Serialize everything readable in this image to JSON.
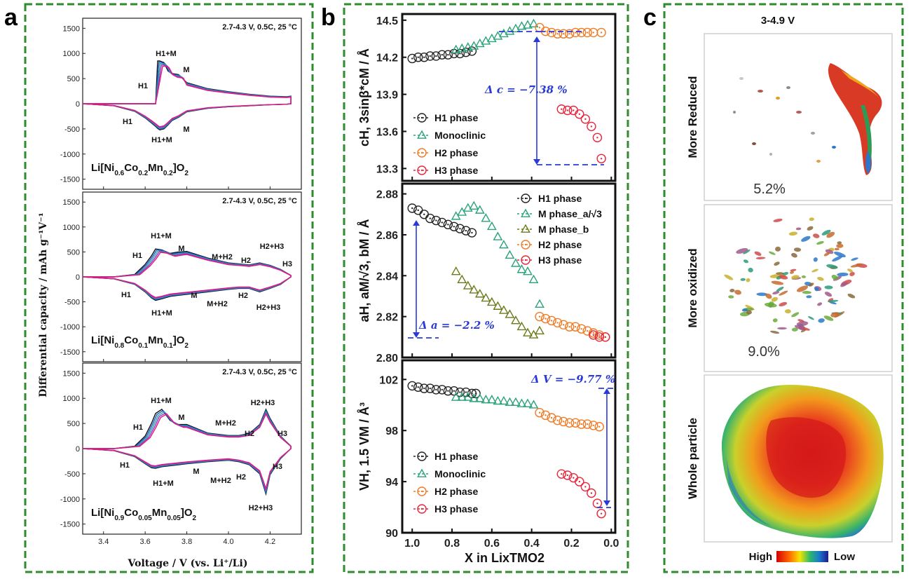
{
  "panels": {
    "a": {
      "letter": "a",
      "xlabel": "Voltage / V (vs. Li⁺/Li)",
      "ylabel": "Differential capacity / mAh g⁻¹V⁻¹",
      "subplots": [
        {
          "condition": "2.7-4.3 V, 0.5C, 25 °C",
          "formula": "Li[Ni0.6Co0.2Mn0.2]O2",
          "charge_labels": [
            "H1+M",
            "M",
            "H1"
          ],
          "discharge_labels": [
            "H1",
            "M",
            "H1+M"
          ]
        },
        {
          "condition": "2.7-4.3 V, 0.5C, 25 °C",
          "formula": "Li[Ni0.8Co0.1Mn0.1]O2",
          "charge_labels": [
            "H1+M",
            "H1",
            "M",
            "M+H2",
            "H2",
            "H2+H3",
            "H3"
          ],
          "discharge_labels": [
            "H1",
            "M",
            "H1+M",
            "M+H2",
            "H2",
            "H2+H3"
          ]
        },
        {
          "condition": "2.7-4.3 V, 0.5C, 25 °C",
          "formula": "Li[Ni0.9Co0.05Mn0.05]O2",
          "charge_labels": [
            "H1+M",
            "H1",
            "M",
            "M+H2",
            "H2",
            "H2+H3",
            "H3"
          ],
          "discharge_labels": [
            "H1",
            "M",
            "H1+M",
            "M+H2",
            "H2",
            "H3",
            "H2+H3"
          ]
        }
      ]
    },
    "b": {
      "letter": "b",
      "xlabel": "X in LixTMO2",
      "top": {
        "ylabel": "cH, 3sinβ*cM / Å",
        "legend": [
          "H1 phase",
          "Monoclinic",
          "H2 phase",
          "H3 phase"
        ],
        "delta": "Δ c = −7.38 %"
      },
      "middle": {
        "ylabel": "aH, aM/√3, bM / Å",
        "legend": [
          "H1 phase",
          "M phase_a/√3",
          "M phase_b",
          "H2 phase",
          "H3 phase"
        ],
        "delta": "Δ a = −2.2 %"
      },
      "bottom": {
        "ylabel": "VH, 1.5 VM / Å³",
        "legend": [
          "H1 phase",
          "Monoclinic",
          "H2 phase",
          "H3 phase"
        ],
        "delta": "Δ V = −9.77 %"
      }
    },
    "c": {
      "letter": "c",
      "title": "3-4.9 V",
      "rows": [
        {
          "label": "More Reduced",
          "percent": "5.2%"
        },
        {
          "label": "More oxidized",
          "percent": "9.0%"
        },
        {
          "label": "Whole particle",
          "percent": ""
        }
      ],
      "colorbar": {
        "high": "High",
        "low": "Low"
      }
    }
  },
  "colors": {
    "frame_green": "#2e8b2e",
    "guide_blue": "#2a3ad8",
    "h1": "#222222",
    "monoclinic": "#2aa37a",
    "m_phase_b": "#6b7a1a",
    "h2": "#f07a24",
    "h3": "#e8243c",
    "dqdv_curves": [
      "#111111",
      "#2255cc",
      "#22aa99",
      "#9933cc",
      "#e0197d"
    ]
  },
  "chart_data": [
    {
      "type": "line",
      "title": "Li[Ni0.6Co0.2Mn0.2]O2",
      "xlabel": "Voltage / V (vs. Li⁺/Li)",
      "ylabel": "Differential capacity / mAh g⁻¹V⁻¹",
      "xlim": [
        3.3,
        4.35
      ],
      "ylim": [
        -1700,
        1700
      ],
      "xticks": [
        3.4,
        3.6,
        3.8,
        4.0,
        4.2
      ],
      "yticks": [
        -1500,
        -1000,
        -500,
        0,
        500,
        1000,
        1500
      ],
      "x": [
        3.3,
        3.45,
        3.55,
        3.6,
        3.63,
        3.65,
        3.66,
        3.67,
        3.69,
        3.71,
        3.73,
        3.76,
        3.8,
        3.9,
        4.0,
        4.1,
        4.2,
        4.28,
        4.3
      ],
      "series": [
        {
          "values_charge": [
            0,
            0,
            0,
            0,
            0,
            0,
            850,
            850,
            820,
            650,
            600,
            580,
            420,
            300,
            240,
            190,
            150,
            140,
            150
          ]
        },
        {
          "values_discharge": [
            0,
            -40,
            -150,
            -280,
            -380,
            -450,
            -490,
            -520,
            -500,
            -420,
            -330,
            -270,
            -160,
            -90,
            -60,
            -40,
            -20,
            -10,
            0
          ]
        }
      ]
    },
    {
      "type": "line",
      "title": "Li[Ni0.8Co0.1Mn0.1]O2",
      "xlabel": "Voltage / V (vs. Li⁺/Li)",
      "ylabel": "Differential capacity / mAh g⁻¹V⁻¹",
      "xlim": [
        3.3,
        4.35
      ],
      "ylim": [
        -1700,
        1700
      ],
      "xticks": [
        3.4,
        3.6,
        3.8,
        4.0,
        4.2
      ],
      "yticks": [
        -1500,
        -1000,
        -500,
        0,
        500,
        1000,
        1500
      ],
      "x": [
        3.3,
        3.45,
        3.55,
        3.6,
        3.63,
        3.65,
        3.68,
        3.72,
        3.76,
        3.8,
        3.9,
        4.0,
        4.05,
        4.1,
        4.15,
        4.2,
        4.25,
        4.3
      ],
      "series": [
        {
          "values_charge": [
            0,
            0,
            50,
            250,
            420,
            560,
            540,
            470,
            500,
            510,
            380,
            280,
            260,
            240,
            280,
            230,
            150,
            30
          ]
        },
        {
          "values_discharge": [
            0,
            -40,
            -150,
            -300,
            -420,
            -470,
            -440,
            -390,
            -370,
            -350,
            -300,
            -250,
            -230,
            -230,
            -300,
            -230,
            -150,
            0
          ]
        }
      ]
    },
    {
      "type": "line",
      "title": "Li[Ni0.9Co0.05Mn0.05]O2",
      "xlabel": "Voltage / V (vs. Li⁺/Li)",
      "ylabel": "Differential capacity / mAh g⁻¹V⁻¹",
      "xlim": [
        3.3,
        4.35
      ],
      "ylim": [
        -1700,
        1700
      ],
      "xticks": [
        3.4,
        3.6,
        3.8,
        4.0,
        4.2
      ],
      "yticks": [
        -1500,
        -1000,
        -500,
        0,
        500,
        1000,
        1500
      ],
      "x": [
        3.3,
        3.45,
        3.55,
        3.6,
        3.63,
        3.65,
        3.68,
        3.72,
        3.76,
        3.8,
        3.9,
        4.0,
        4.05,
        4.1,
        4.15,
        4.18,
        4.2,
        4.25,
        4.3
      ],
      "series": [
        {
          "values_charge": [
            0,
            0,
            50,
            250,
            500,
            700,
            780,
            560,
            480,
            480,
            310,
            260,
            260,
            300,
            480,
            780,
            600,
            250,
            50
          ]
        },
        {
          "values_discharge": [
            0,
            -40,
            -160,
            -300,
            -380,
            -390,
            -360,
            -340,
            -320,
            -300,
            -260,
            -230,
            -260,
            -320,
            -500,
            -900,
            -520,
            -200,
            0
          ]
        }
      ]
    },
    {
      "type": "scatter",
      "title": "",
      "xlabel": "X in LixTMO2",
      "ylabel": "cH, 3sinβ*cM / Å",
      "xlim": [
        1.05,
        -0.02
      ],
      "ylim": [
        13.2,
        14.55
      ],
      "xticks": [
        1.0,
        0.8,
        0.6,
        0.4,
        0.2,
        0.0
      ],
      "yticks": [
        13.3,
        13.6,
        13.9,
        14.2,
        14.5
      ],
      "series": [
        {
          "name": "H1 phase",
          "x": [
            1.0,
            0.97,
            0.94,
            0.91,
            0.88,
            0.85,
            0.82,
            0.79,
            0.76,
            0.73,
            0.7
          ],
          "y": [
            14.19,
            14.2,
            14.2,
            14.21,
            14.21,
            14.22,
            14.22,
            14.23,
            14.23,
            14.24,
            14.25
          ]
        },
        {
          "name": "Monoclinic",
          "x": [
            0.78,
            0.75,
            0.72,
            0.69,
            0.66,
            0.63,
            0.6,
            0.57,
            0.54,
            0.51,
            0.48,
            0.45,
            0.42,
            0.39
          ],
          "y": [
            14.26,
            14.27,
            14.28,
            14.29,
            14.31,
            14.33,
            14.35,
            14.37,
            14.39,
            14.41,
            14.43,
            14.45,
            14.46,
            14.47
          ]
        },
        {
          "name": "H2 phase",
          "x": [
            0.36,
            0.33,
            0.3,
            0.27,
            0.24,
            0.21,
            0.18,
            0.15,
            0.12,
            0.09,
            0.05
          ],
          "y": [
            14.44,
            14.41,
            14.4,
            14.39,
            14.39,
            14.39,
            14.4,
            14.4,
            14.4,
            14.4,
            14.4
          ]
        },
        {
          "name": "H3 phase",
          "x": [
            0.25,
            0.22,
            0.19,
            0.16,
            0.13,
            0.1,
            0.07,
            0.05
          ],
          "y": [
            13.78,
            13.77,
            13.77,
            13.74,
            13.7,
            13.64,
            13.55,
            13.38
          ]
        }
      ]
    },
    {
      "type": "scatter",
      "title": "",
      "xlabel": "X in LixTMO2",
      "ylabel": "aH, aM/√3, bM / Å",
      "xlim": [
        1.05,
        -0.02
      ],
      "ylim": [
        2.8,
        2.885
      ],
      "xticks": [
        1.0,
        0.8,
        0.6,
        0.4,
        0.2,
        0.0
      ],
      "yticks": [
        2.8,
        2.82,
        2.84,
        2.86,
        2.88
      ],
      "series": [
        {
          "name": "H1 phase",
          "x": [
            1.0,
            0.97,
            0.94,
            0.91,
            0.88,
            0.85,
            0.82,
            0.79,
            0.76,
            0.73,
            0.7
          ],
          "y": [
            2.873,
            2.872,
            2.87,
            2.868,
            2.867,
            2.866,
            2.865,
            2.864,
            2.863,
            2.862,
            2.861
          ]
        },
        {
          "name": "M phase_a/√3",
          "x": [
            0.78,
            0.75,
            0.72,
            0.69,
            0.66,
            0.63,
            0.6,
            0.57,
            0.54,
            0.51,
            0.48,
            0.45,
            0.42,
            0.39,
            0.36
          ],
          "y": [
            2.869,
            2.871,
            2.873,
            2.874,
            2.872,
            2.868,
            2.864,
            2.859,
            2.855,
            2.85,
            2.846,
            2.843,
            2.842,
            2.838,
            2.826
          ]
        },
        {
          "name": "M phase_b",
          "x": [
            0.78,
            0.75,
            0.72,
            0.69,
            0.66,
            0.63,
            0.6,
            0.57,
            0.54,
            0.51,
            0.48,
            0.45,
            0.42,
            0.39,
            0.36
          ],
          "y": [
            2.842,
            2.838,
            2.835,
            2.833,
            2.831,
            2.829,
            2.827,
            2.825,
            2.823,
            2.821,
            2.818,
            2.815,
            2.812,
            2.811,
            2.813
          ]
        },
        {
          "name": "H2 phase",
          "x": [
            0.36,
            0.33,
            0.3,
            0.27,
            0.24,
            0.21,
            0.18,
            0.15,
            0.12,
            0.09,
            0.06,
            0.03
          ],
          "y": [
            2.82,
            2.819,
            2.818,
            2.817,
            2.816,
            2.815,
            2.815,
            2.814,
            2.813,
            2.812,
            2.811,
            2.81
          ]
        },
        {
          "name": "H3 phase",
          "x": [
            0.09,
            0.06,
            0.03
          ],
          "y": [
            2.811,
            2.81,
            2.81
          ]
        }
      ]
    },
    {
      "type": "scatter",
      "title": "",
      "xlabel": "X in LixTMO2",
      "ylabel": "VH, 1.5 VM / Å³",
      "xlim": [
        1.05,
        -0.02
      ],
      "ylim": [
        90,
        103.5
      ],
      "xticks": [
        1.0,
        0.8,
        0.6,
        0.4,
        0.2,
        0.0
      ],
      "yticks": [
        90,
        94,
        98,
        102
      ],
      "series": [
        {
          "name": "H1 phase",
          "x": [
            1.0,
            0.97,
            0.94,
            0.91,
            0.88,
            0.85,
            0.82,
            0.79,
            0.76,
            0.73,
            0.7,
            0.68
          ],
          "y": [
            101.5,
            101.4,
            101.3,
            101.3,
            101.2,
            101.2,
            101.1,
            101.1,
            101.0,
            101.0,
            100.9,
            100.9
          ]
        },
        {
          "name": "Monoclinic",
          "x": [
            0.78,
            0.75,
            0.72,
            0.69,
            0.66,
            0.63,
            0.6,
            0.57,
            0.54,
            0.51,
            0.48,
            0.45,
            0.42,
            0.39
          ],
          "y": [
            100.6,
            100.6,
            100.6,
            100.5,
            100.5,
            100.4,
            100.4,
            100.3,
            100.3,
            100.2,
            100.2,
            100.1,
            100.1,
            100.0
          ]
        },
        {
          "name": "H2 phase",
          "x": [
            0.36,
            0.33,
            0.3,
            0.27,
            0.24,
            0.21,
            0.18,
            0.15,
            0.12,
            0.09,
            0.06
          ],
          "y": [
            99.4,
            99.2,
            99.0,
            98.8,
            98.7,
            98.6,
            98.6,
            98.5,
            98.5,
            98.4,
            98.3
          ]
        },
        {
          "name": "H3 phase",
          "x": [
            0.25,
            0.22,
            0.19,
            0.16,
            0.13,
            0.1,
            0.07,
            0.05
          ],
          "y": [
            94.6,
            94.5,
            94.3,
            94.0,
            93.6,
            93.1,
            92.3,
            91.5
          ]
        }
      ]
    }
  ]
}
